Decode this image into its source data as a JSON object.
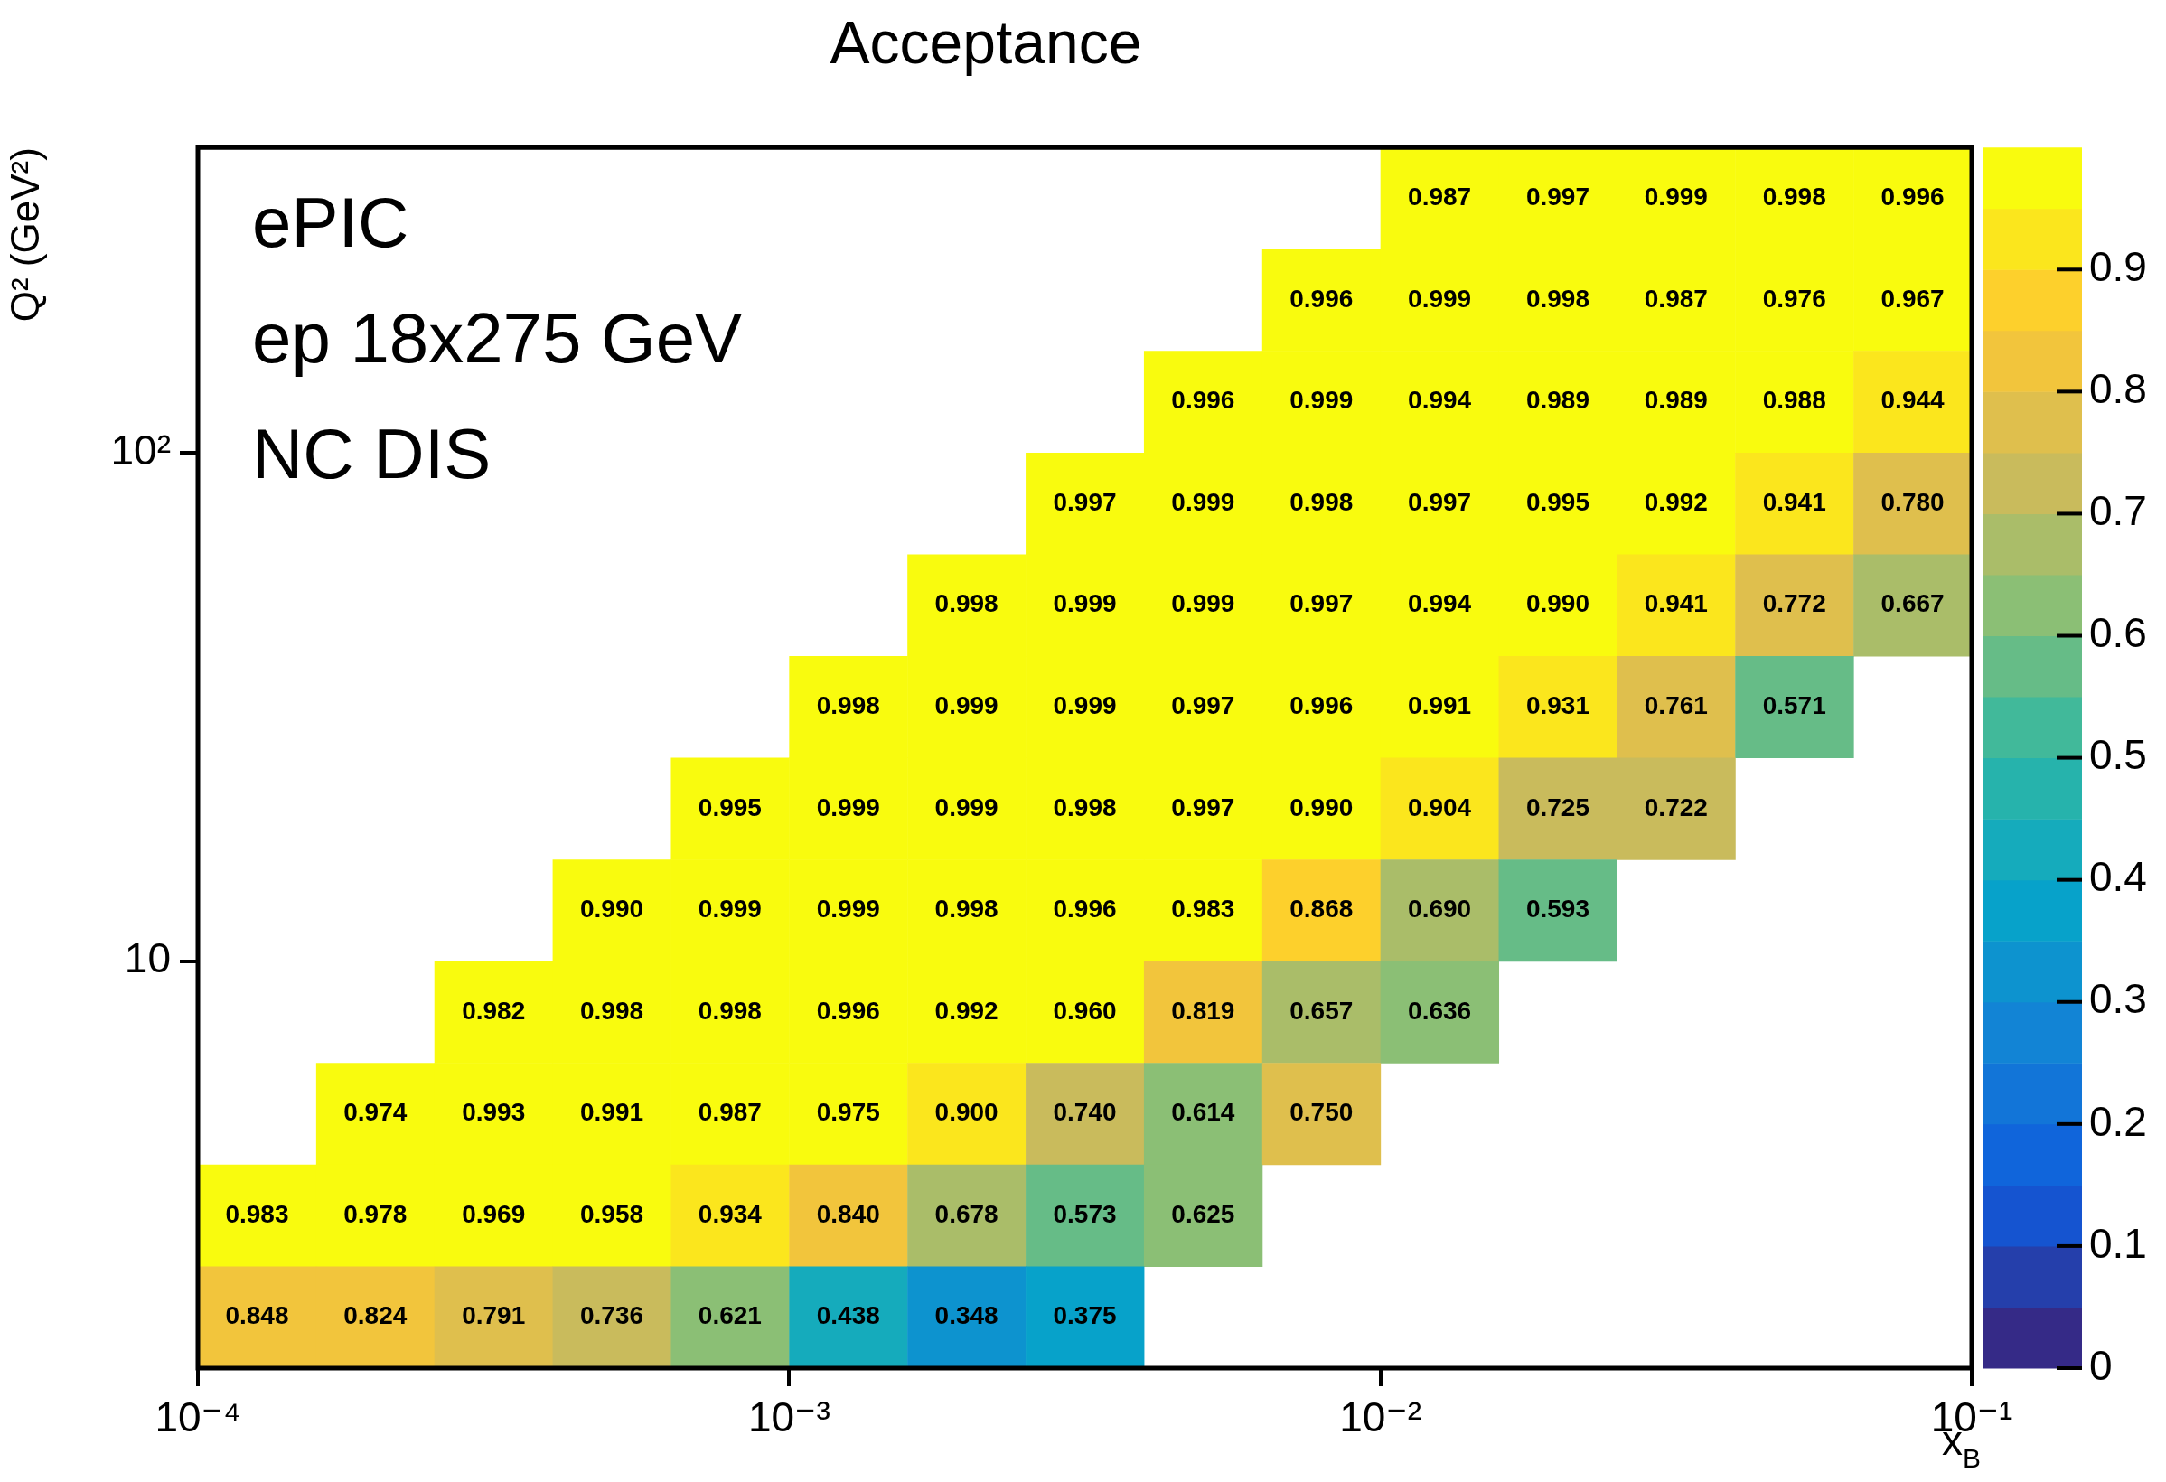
{
  "chart_data": {
    "type": "heatmap",
    "title": "Acceptance",
    "xlabel": "x$_{B}$",
    "ylabel": "Q² (GeV²)",
    "annotations": [
      "ePIC",
      "ep 18x275 GeV",
      "NC DIS"
    ],
    "cells": [
      [
        null,
        null,
        null,
        null,
        null,
        null,
        null,
        null,
        null,
        null,
        0.987,
        0.997,
        0.999,
        0.998,
        0.996
      ],
      [
        null,
        null,
        null,
        null,
        null,
        null,
        null,
        null,
        null,
        0.996,
        0.999,
        0.998,
        0.987,
        0.976,
        0.967
      ],
      [
        null,
        null,
        null,
        null,
        null,
        null,
        null,
        null,
        0.996,
        0.999,
        0.994,
        0.989,
        0.989,
        0.988,
        0.944
      ],
      [
        null,
        null,
        null,
        null,
        null,
        null,
        null,
        0.997,
        0.999,
        0.998,
        0.997,
        0.995,
        0.992,
        0.941,
        0.78
      ],
      [
        null,
        null,
        null,
        null,
        null,
        null,
        0.998,
        0.999,
        0.999,
        0.997,
        0.994,
        0.99,
        0.941,
        0.772,
        0.667
      ],
      [
        null,
        null,
        null,
        null,
        null,
        0.998,
        0.999,
        0.999,
        0.997,
        0.996,
        0.991,
        0.931,
        0.761,
        0.571,
        null
      ],
      [
        null,
        null,
        null,
        null,
        0.995,
        0.999,
        0.999,
        0.998,
        0.997,
        0.99,
        0.904,
        0.725,
        0.722,
        null,
        null
      ],
      [
        null,
        null,
        null,
        0.99,
        0.999,
        0.999,
        0.998,
        0.996,
        0.983,
        0.868,
        0.69,
        0.593,
        null,
        null,
        null
      ],
      [
        null,
        null,
        0.982,
        0.998,
        0.998,
        0.996,
        0.992,
        0.96,
        0.819,
        0.657,
        0.636,
        null,
        null,
        null,
        null
      ],
      [
        null,
        0.974,
        0.993,
        0.991,
        0.987,
        0.975,
        0.9,
        0.74,
        0.614,
        0.75,
        null,
        null,
        null,
        null,
        null
      ],
      [
        0.983,
        0.978,
        0.969,
        0.958,
        0.934,
        0.84,
        0.678,
        0.573,
        0.625,
        null,
        null,
        null,
        null,
        null,
        null
      ],
      [
        0.848,
        0.824,
        0.791,
        0.736,
        0.621,
        0.438,
        0.348,
        0.375,
        null,
        null,
        null,
        null,
        null,
        null,
        null
      ]
    ],
    "data_labels": true,
    "cell_labels": [
      [
        null,
        null,
        null,
        null,
        null,
        null,
        null,
        null,
        null,
        null,
        "0.987",
        "0.997",
        "0.999",
        "0.998",
        "0.996"
      ],
      [
        null,
        null,
        null,
        null,
        null,
        null,
        null,
        null,
        null,
        "0.996",
        "0.999",
        "0.998",
        "0.987",
        "0.976",
        "0.967"
      ],
      [
        null,
        null,
        null,
        null,
        null,
        null,
        null,
        null,
        "0.996",
        "0.999",
        "0.994",
        "0.989",
        "0.989",
        "0.988",
        "0.944"
      ],
      [
        null,
        null,
        null,
        null,
        null,
        null,
        null,
        "0.997",
        "0.999",
        "0.998",
        "0.997",
        "0.995",
        "0.992",
        "0.941",
        "0.780"
      ],
      [
        null,
        null,
        null,
        null,
        null,
        null,
        "0.998",
        "0.999",
        "0.999",
        "0.997",
        "0.994",
        "0.990",
        "0.941",
        "0.772",
        "0.667"
      ],
      [
        null,
        null,
        null,
        null,
        null,
        "0.998",
        "0.999",
        "0.999",
        "0.997",
        "0.996",
        "0.991",
        "0.931",
        "0.761",
        "0.571",
        null
      ],
      [
        null,
        null,
        null,
        null,
        "0.995",
        "0.999",
        "0.999",
        "0.998",
        "0.997",
        "0.990",
        "0.904",
        "0.725",
        "0.722",
        null,
        null
      ],
      [
        null,
        null,
        null,
        "0.990",
        "0.999",
        "0.999",
        "0.998",
        "0.996",
        "0.983",
        "0.868",
        "0.690",
        "0.593",
        null,
        null,
        null
      ],
      [
        null,
        null,
        "0.982",
        "0.998",
        "0.998",
        "0.996",
        "0.992",
        "0.960",
        "0.819",
        "0.657",
        "0.636",
        null,
        null,
        null,
        null
      ],
      [
        null,
        "0.974",
        "0.993",
        "0.991",
        "0.987",
        "0.975",
        "0.900",
        "0.740",
        "0.614",
        "0.750",
        null,
        null,
        null,
        null,
        null
      ],
      [
        "0.983",
        "0.978",
        "0.969",
        "0.958",
        "0.934",
        "0.840",
        "0.678",
        "0.573",
        "0.625",
        null,
        null,
        null,
        null,
        null,
        null
      ],
      [
        "0.848",
        "0.824",
        "0.791",
        "0.736",
        "0.621",
        "0.438",
        "0.348",
        "0.375",
        null,
        null,
        null,
        null,
        null,
        null,
        null
      ]
    ],
    "clim": [
      0,
      1
    ],
    "cticks": [
      0,
      0.1,
      0.2,
      0.3,
      0.4,
      0.5,
      0.6,
      0.7,
      0.8,
      0.9
    ],
    "log": "xy",
    "xlim": [
      0.0001,
      0.1
    ],
    "xticks": [
      {
        "value": 0.0001,
        "label": "10⁻⁴"
      },
      {
        "value": 0.001,
        "label": "10⁻³"
      },
      {
        "value": 0.01,
        "label": "10⁻²"
      },
      {
        "value": 0.1,
        "label": "10⁻¹"
      }
    ],
    "ylim": [
      1.585,
      398.1
    ],
    "yticks": [
      {
        "value": 10,
        "label": "10"
      },
      {
        "value": 100,
        "label": "10²"
      }
    ]
  }
}
